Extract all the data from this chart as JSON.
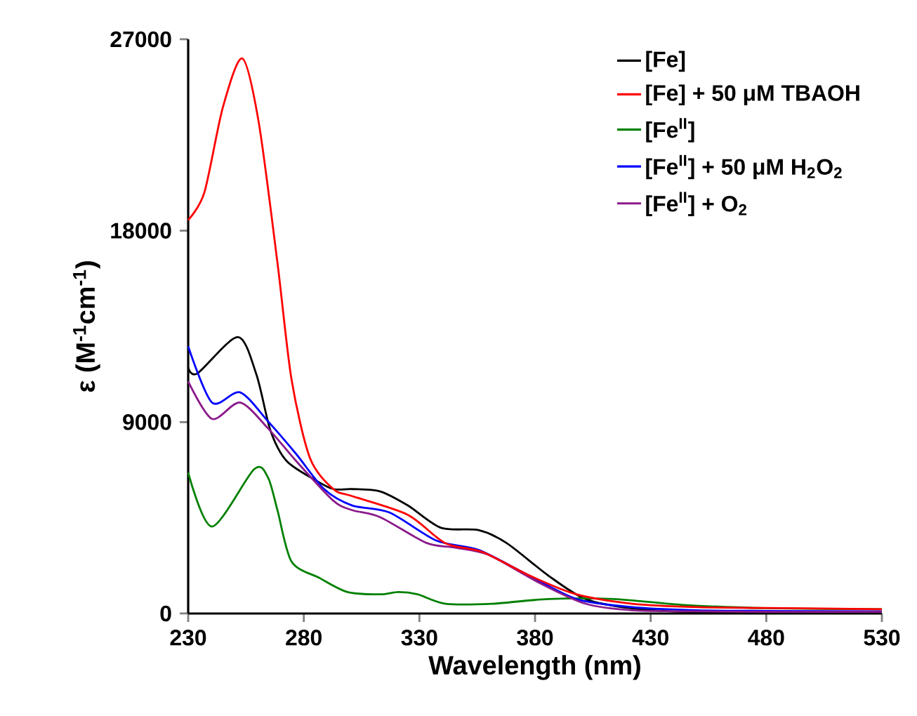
{
  "chart_data": {
    "type": "line",
    "xlabel": "Wavelength (nm)",
    "ylabel": "ε (M$^{-1}$cm$^{-1}$)",
    "xlim": [
      230,
      530
    ],
    "ylim": [
      0,
      27000
    ],
    "xticks": [
      230,
      280,
      330,
      380,
      430,
      480,
      530
    ],
    "yticks": [
      0,
      9000,
      18000,
      27000
    ],
    "grid": false,
    "legend": "top right",
    "marker": "none",
    "line_style": "solid",
    "series": [
      {
        "name": "[Fe]",
        "color": "#000000",
        "x": [
          230,
          234,
          251.4,
          259.5,
          265.6,
          272.6,
          284.7,
          292.8,
          300.9,
          313,
          325,
          339.3,
          355.5,
          367.6,
          385.8,
          401.8,
          422,
          450,
          480,
          530
        ],
        "values": [
          11570,
          11290,
          13000,
          11240,
          8600,
          7170,
          6290,
          5850,
          5850,
          5740,
          5080,
          4030,
          3920,
          3320,
          1780,
          680,
          240,
          50,
          30,
          30
        ]
      },
      {
        "name": "[Fe] + 50 μM TBAOH",
        "color": "#ff0000",
        "x": [
          230,
          237,
          245,
          253.4,
          260.5,
          268.6,
          274.7,
          282.7,
          292.8,
          300.9,
          325,
          341,
          357.5,
          377.7,
          397.9,
          422,
          450,
          480,
          530
        ],
        "values": [
          18500,
          19800,
          23800,
          26100,
          23100,
          16500,
          11000,
          7300,
          5850,
          5520,
          4640,
          3320,
          2880,
          1780,
          900,
          460,
          300,
          260,
          200
        ]
      },
      {
        "name": "[Fe$^{II}$]",
        "color": "#008000",
        "x": [
          230,
          240.3,
          258.5,
          264.5,
          268.6,
          274.7,
          286.8,
          298.9,
          313,
          321,
          329.2,
          341.3,
          361.5,
          385.8,
          414,
          444.4,
          480,
          530
        ],
        "values": [
          6620,
          4090,
          6780,
          6400,
          4860,
          2440,
          1670,
          1010,
          900,
          1010,
          900,
          460,
          460,
          680,
          680,
          400,
          250,
          200
        ]
      },
      {
        "name": "[Fe$^{II}$] + 50 μM H$_{2}$O$_{2}$",
        "color": "#0000ff",
        "x": [
          230,
          240.3,
          252.4,
          264.5,
          276.7,
          288.8,
          300.9,
          317,
          337.3,
          355.5,
          375.6,
          397.9,
          422,
          450,
          480,
          530
        ],
        "values": [
          12560,
          9920,
          10400,
          9040,
          7500,
          5850,
          5080,
          4750,
          3430,
          2990,
          1890,
          680,
          300,
          150,
          120,
          100
        ]
      },
      {
        "name": "[Fe$^{II}$] + O$_{2}$",
        "color": "#8b1a8b",
        "x": [
          230,
          240.3,
          252.4,
          264.5,
          276.7,
          292.8,
          300.9,
          313,
          333,
          345.3,
          359.6,
          381.7,
          401.8,
          422,
          450,
          480,
          530
        ],
        "values": [
          10910,
          9150,
          9920,
          8710,
          7170,
          5300,
          4860,
          4530,
          3320,
          3100,
          2770,
          1450,
          460,
          150,
          100,
          80,
          80
        ]
      }
    ]
  }
}
